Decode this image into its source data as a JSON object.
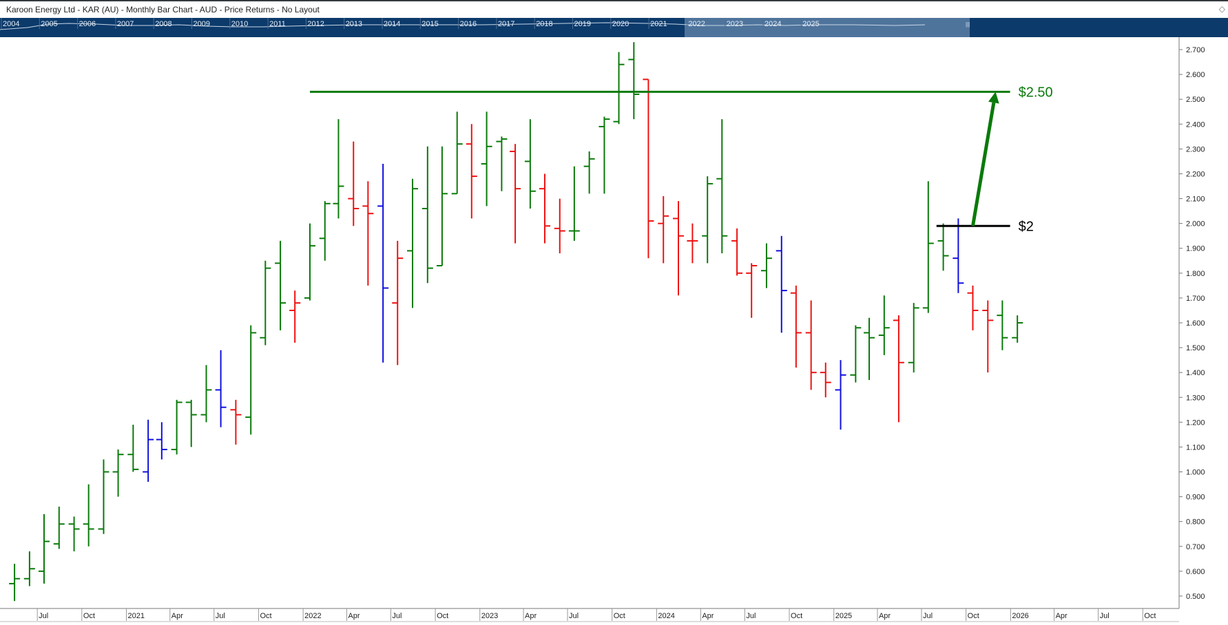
{
  "window": {
    "title": "Karoon Energy Ltd - KAR (AU) - Monthly Bar Chart - AUD - Price Returns - No Layout"
  },
  "icons": {
    "corner": "diamond-outline-icon"
  },
  "navigator": {
    "years": [
      "2004",
      "2005",
      "2006",
      "2007",
      "2008",
      "2009",
      "2010",
      "2011",
      "2012",
      "2013",
      "2014",
      "2015",
      "2016",
      "2017",
      "2018",
      "2019",
      "2020",
      "2021",
      "2022",
      "2023",
      "2024",
      "2025"
    ],
    "handle_label": "|||",
    "colors": {
      "background": "#0c3a6b",
      "selection": "#5c7fa5",
      "text": "#e6eef7"
    }
  },
  "chart_data": {
    "type": "ohlc-bar",
    "title": "Karoon Energy Ltd - KAR (AU) - Monthly Bar Chart - AUD - Price Returns - No Layout",
    "period": "monthly",
    "currency": "AUD",
    "first_bar_month": "2020-05",
    "x_time_range": [
      "2020-04-15",
      "2026-12-15"
    ],
    "ylim": [
      0.45,
      2.75
    ],
    "y_axis_side": "right",
    "y_ticks": [
      "0.500",
      "0.600",
      "0.700",
      "0.800",
      "0.900",
      "1.000",
      "1.100",
      "1.200",
      "1.300",
      "1.400",
      "1.500",
      "1.600",
      "1.700",
      "1.800",
      "1.900",
      "2.000",
      "2.100",
      "2.200",
      "2.300",
      "2.400",
      "2.500",
      "2.600",
      "2.700"
    ],
    "x_ticks": [
      {
        "label": "Jul",
        "date": "2020-07-01"
      },
      {
        "label": "Oct",
        "date": "2020-10-01"
      },
      {
        "label": "2021",
        "date": "2021-01-01"
      },
      {
        "label": "Apr",
        "date": "2021-04-01"
      },
      {
        "label": "Jul",
        "date": "2021-07-01"
      },
      {
        "label": "Oct",
        "date": "2021-10-01"
      },
      {
        "label": "2022",
        "date": "2022-01-01"
      },
      {
        "label": "Apr",
        "date": "2022-04-01"
      },
      {
        "label": "Jul",
        "date": "2022-07-01"
      },
      {
        "label": "Oct",
        "date": "2022-10-01"
      },
      {
        "label": "2023",
        "date": "2023-01-01"
      },
      {
        "label": "Apr",
        "date": "2023-04-01"
      },
      {
        "label": "Jul",
        "date": "2023-07-01"
      },
      {
        "label": "Oct",
        "date": "2023-10-01"
      },
      {
        "label": "2024",
        "date": "2024-01-01"
      },
      {
        "label": "Apr",
        "date": "2024-04-01"
      },
      {
        "label": "Jul",
        "date": "2024-07-01"
      },
      {
        "label": "Oct",
        "date": "2024-10-01"
      },
      {
        "label": "2025",
        "date": "2025-01-01"
      },
      {
        "label": "Apr",
        "date": "2025-04-01"
      },
      {
        "label": "Jul",
        "date": "2025-07-01"
      },
      {
        "label": "Oct",
        "date": "2025-10-01"
      },
      {
        "label": "2026",
        "date": "2026-01-01"
      },
      {
        "label": "Apr",
        "date": "2026-04-01"
      },
      {
        "label": "Jul",
        "date": "2026-07-01"
      },
      {
        "label": "Oct",
        "date": "2026-10-01"
      }
    ],
    "bars": [
      {
        "o": 0.55,
        "h": 0.63,
        "l": 0.48,
        "c": 0.57,
        "color": "green"
      },
      {
        "o": 0.57,
        "h": 0.68,
        "l": 0.54,
        "c": 0.61,
        "color": "green"
      },
      {
        "o": 0.6,
        "h": 0.83,
        "l": 0.55,
        "c": 0.72,
        "color": "green"
      },
      {
        "o": 0.71,
        "h": 0.86,
        "l": 0.69,
        "c": 0.79,
        "color": "green"
      },
      {
        "o": 0.79,
        "h": 0.82,
        "l": 0.68,
        "c": 0.77,
        "color": "green"
      },
      {
        "o": 0.79,
        "h": 0.95,
        "l": 0.7,
        "c": 0.77,
        "color": "green"
      },
      {
        "o": 0.77,
        "h": 1.05,
        "l": 0.75,
        "c": 1.0,
        "color": "green"
      },
      {
        "o": 1.0,
        "h": 1.09,
        "l": 0.9,
        "c": 1.07,
        "color": "green"
      },
      {
        "o": 1.07,
        "h": 1.19,
        "l": 1.0,
        "c": 1.01,
        "color": "green"
      },
      {
        "o": 1.0,
        "h": 1.21,
        "l": 0.96,
        "c": 1.13,
        "color": "blue"
      },
      {
        "o": 1.13,
        "h": 1.2,
        "l": 1.05,
        "c": 1.09,
        "color": "blue"
      },
      {
        "o": 1.09,
        "h": 1.29,
        "l": 1.07,
        "c": 1.28,
        "color": "green"
      },
      {
        "o": 1.28,
        "h": 1.29,
        "l": 1.1,
        "c": 1.23,
        "color": "green"
      },
      {
        "o": 1.23,
        "h": 1.43,
        "l": 1.2,
        "c": 1.33,
        "color": "green"
      },
      {
        "o": 1.33,
        "h": 1.49,
        "l": 1.18,
        "c": 1.26,
        "color": "blue"
      },
      {
        "o": 1.25,
        "h": 1.29,
        "l": 1.11,
        "c": 1.23,
        "color": "red"
      },
      {
        "o": 1.22,
        "h": 1.59,
        "l": 1.15,
        "c": 1.56,
        "color": "green"
      },
      {
        "o": 1.54,
        "h": 1.85,
        "l": 1.51,
        "c": 1.82,
        "color": "green"
      },
      {
        "o": 1.84,
        "h": 1.93,
        "l": 1.57,
        "c": 1.68,
        "color": "green"
      },
      {
        "o": 1.65,
        "h": 1.73,
        "l": 1.52,
        "c": 1.68,
        "color": "red"
      },
      {
        "o": 1.7,
        "h": 2.0,
        "l": 1.69,
        "c": 1.91,
        "color": "green"
      },
      {
        "o": 1.94,
        "h": 2.09,
        "l": 1.85,
        "c": 2.08,
        "color": "green"
      },
      {
        "o": 2.08,
        "h": 2.42,
        "l": 2.02,
        "c": 2.15,
        "color": "green"
      },
      {
        "o": 2.1,
        "h": 2.33,
        "l": 1.99,
        "c": 2.06,
        "color": "red"
      },
      {
        "o": 2.07,
        "h": 2.17,
        "l": 1.75,
        "c": 2.04,
        "color": "red"
      },
      {
        "o": 2.07,
        "h": 2.24,
        "l": 1.44,
        "c": 1.74,
        "color": "blue"
      },
      {
        "o": 1.68,
        "h": 1.93,
        "l": 1.43,
        "c": 1.86,
        "color": "red"
      },
      {
        "o": 1.89,
        "h": 2.18,
        "l": 1.66,
        "c": 2.14,
        "color": "green"
      },
      {
        "o": 2.06,
        "h": 2.31,
        "l": 1.76,
        "c": 1.82,
        "color": "green"
      },
      {
        "o": 1.83,
        "h": 2.31,
        "l": 1.83,
        "c": 2.12,
        "color": "green"
      },
      {
        "o": 2.12,
        "h": 2.45,
        "l": 2.12,
        "c": 2.32,
        "color": "green"
      },
      {
        "o": 2.32,
        "h": 2.4,
        "l": 2.02,
        "c": 2.19,
        "color": "red"
      },
      {
        "o": 2.24,
        "h": 2.45,
        "l": 2.07,
        "c": 2.31,
        "color": "green"
      },
      {
        "o": 2.33,
        "h": 2.35,
        "l": 2.13,
        "c": 2.34,
        "color": "green"
      },
      {
        "o": 2.29,
        "h": 2.32,
        "l": 1.92,
        "c": 2.14,
        "color": "red"
      },
      {
        "o": 2.25,
        "h": 2.42,
        "l": 2.06,
        "c": 2.13,
        "color": "green"
      },
      {
        "o": 2.14,
        "h": 2.2,
        "l": 1.92,
        "c": 1.99,
        "color": "red"
      },
      {
        "o": 1.98,
        "h": 2.1,
        "l": 1.88,
        "c": 1.97,
        "color": "red"
      },
      {
        "o": 1.97,
        "h": 2.23,
        "l": 1.93,
        "c": 1.97,
        "color": "green"
      },
      {
        "o": 2.23,
        "h": 2.29,
        "l": 2.12,
        "c": 2.26,
        "color": "green"
      },
      {
        "o": 2.39,
        "h": 2.43,
        "l": 2.12,
        "c": 2.42,
        "color": "green"
      },
      {
        "o": 2.41,
        "h": 2.69,
        "l": 2.4,
        "c": 2.64,
        "color": "green"
      },
      {
        "o": 2.66,
        "h": 2.73,
        "l": 2.42,
        "c": 2.52,
        "color": "green"
      },
      {
        "o": 2.58,
        "h": 2.58,
        "l": 1.86,
        "c": 2.01,
        "color": "red"
      },
      {
        "o": 2.0,
        "h": 2.11,
        "l": 1.84,
        "c": 2.03,
        "color": "red"
      },
      {
        "o": 2.02,
        "h": 2.09,
        "l": 1.71,
        "c": 1.95,
        "color": "red"
      },
      {
        "o": 1.93,
        "h": 2.0,
        "l": 1.84,
        "c": 1.93,
        "color": "red"
      },
      {
        "o": 1.95,
        "h": 2.19,
        "l": 1.84,
        "c": 2.16,
        "color": "green"
      },
      {
        "o": 2.18,
        "h": 2.42,
        "l": 1.88,
        "c": 1.95,
        "color": "green"
      },
      {
        "o": 1.93,
        "h": 1.98,
        "l": 1.79,
        "c": 1.8,
        "color": "red"
      },
      {
        "o": 1.8,
        "h": 1.84,
        "l": 1.62,
        "c": 1.83,
        "color": "red"
      },
      {
        "o": 1.81,
        "h": 1.92,
        "l": 1.74,
        "c": 1.86,
        "color": "green"
      },
      {
        "o": 1.89,
        "h": 1.95,
        "l": 1.56,
        "c": 1.73,
        "color": "blue"
      },
      {
        "o": 1.72,
        "h": 1.75,
        "l": 1.42,
        "c": 1.56,
        "color": "red"
      },
      {
        "o": 1.56,
        "h": 1.69,
        "l": 1.33,
        "c": 1.4,
        "color": "red"
      },
      {
        "o": 1.4,
        "h": 1.44,
        "l": 1.3,
        "c": 1.36,
        "color": "red"
      },
      {
        "o": 1.33,
        "h": 1.45,
        "l": 1.17,
        "c": 1.39,
        "color": "blue"
      },
      {
        "o": 1.39,
        "h": 1.59,
        "l": 1.36,
        "c": 1.58,
        "color": "green"
      },
      {
        "o": 1.56,
        "h": 1.62,
        "l": 1.37,
        "c": 1.54,
        "color": "green"
      },
      {
        "o": 1.55,
        "h": 1.71,
        "l": 1.47,
        "c": 1.58,
        "color": "green"
      },
      {
        "o": 1.61,
        "h": 1.63,
        "l": 1.2,
        "c": 1.44,
        "color": "red"
      },
      {
        "o": 1.44,
        "h": 1.68,
        "l": 1.4,
        "c": 1.66,
        "color": "green"
      },
      {
        "o": 1.66,
        "h": 2.17,
        "l": 1.64,
        "c": 1.92,
        "color": "green"
      },
      {
        "o": 1.93,
        "h": 2.0,
        "l": 1.81,
        "c": 1.87,
        "color": "green"
      },
      {
        "o": 1.86,
        "h": 2.02,
        "l": 1.72,
        "c": 1.76,
        "color": "blue"
      },
      {
        "o": 1.72,
        "h": 1.75,
        "l": 1.57,
        "c": 1.65,
        "color": "red"
      },
      {
        "o": 1.65,
        "h": 1.69,
        "l": 1.4,
        "c": 1.61,
        "color": "red"
      },
      {
        "o": 1.63,
        "h": 1.69,
        "l": 1.49,
        "c": 1.54,
        "color": "green"
      },
      {
        "o": 1.54,
        "h": 1.63,
        "l": 1.52,
        "c": 1.6,
        "color": "green"
      }
    ],
    "annotations": [
      {
        "type": "hline",
        "label": "$2.50",
        "value": 2.53,
        "from": "2022-01-15",
        "to": "2025-12-31",
        "color": "#0a7a0a"
      },
      {
        "type": "hline",
        "label": "$2",
        "value": 1.99,
        "from": "2025-08-01",
        "to": "2025-12-31",
        "color": "#000000"
      },
      {
        "type": "arrow",
        "from": {
          "date": "2025-10-15",
          "value": 1.99
        },
        "to": {
          "date": "2025-12-01",
          "value": 2.53
        },
        "color": "#0a7a0a"
      }
    ],
    "colors": {
      "up": "#0a7a0a",
      "down": "#ee1111",
      "neutral": "#1010dd",
      "axis": "#555555"
    }
  }
}
